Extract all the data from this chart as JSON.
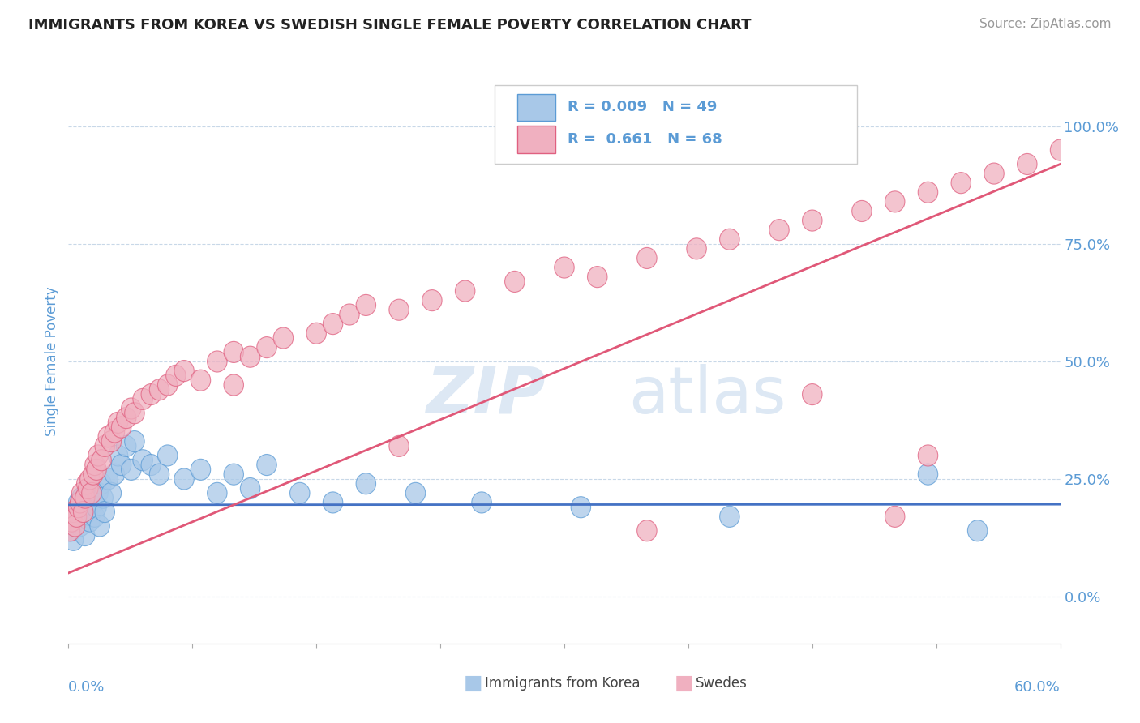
{
  "title": "IMMIGRANTS FROM KOREA VS SWEDISH SINGLE FEMALE POVERTY CORRELATION CHART",
  "source": "Source: ZipAtlas.com",
  "ylabel_label": "Single Female Poverty",
  "yticks": [
    0.0,
    0.25,
    0.5,
    0.75,
    1.0
  ],
  "ytick_labels": [
    "0.0%",
    "25.0%",
    "50.0%",
    "75.0%",
    "100.0%"
  ],
  "xlim": [
    0.0,
    0.6
  ],
  "ylim": [
    -0.1,
    1.1
  ],
  "blue_scatter_color": "#a8c8e8",
  "pink_scatter_color": "#f0b0c0",
  "blue_edge_color": "#5b9bd5",
  "pink_edge_color": "#e06080",
  "blue_line_color": "#4472c4",
  "pink_line_color": "#e05878",
  "grid_color": "#c8d8e8",
  "title_color": "#222222",
  "axis_label_color": "#5b9bd5",
  "background_color": "#ffffff",
  "watermark_color": "#dde8f4",
  "blue_line_y0": 0.195,
  "blue_line_slope": 0.002,
  "pink_line_y0": 0.05,
  "pink_line_slope": 1.45,
  "blue_x": [
    0.001,
    0.002,
    0.003,
    0.004,
    0.005,
    0.006,
    0.007,
    0.008,
    0.009,
    0.01,
    0.011,
    0.012,
    0.013,
    0.014,
    0.015,
    0.016,
    0.017,
    0.018,
    0.019,
    0.02,
    0.021,
    0.022,
    0.024,
    0.026,
    0.028,
    0.03,
    0.032,
    0.035,
    0.038,
    0.04,
    0.045,
    0.05,
    0.055,
    0.06,
    0.07,
    0.08,
    0.09,
    0.1,
    0.11,
    0.12,
    0.14,
    0.16,
    0.18,
    0.21,
    0.25,
    0.31,
    0.4,
    0.52,
    0.55
  ],
  "blue_y": [
    0.17,
    0.14,
    0.12,
    0.16,
    0.18,
    0.2,
    0.15,
    0.21,
    0.19,
    0.13,
    0.22,
    0.18,
    0.16,
    0.23,
    0.2,
    0.17,
    0.19,
    0.22,
    0.15,
    0.24,
    0.21,
    0.18,
    0.25,
    0.22,
    0.26,
    0.3,
    0.28,
    0.32,
    0.27,
    0.33,
    0.29,
    0.28,
    0.26,
    0.3,
    0.25,
    0.27,
    0.22,
    0.26,
    0.23,
    0.28,
    0.22,
    0.2,
    0.24,
    0.22,
    0.2,
    0.19,
    0.17,
    0.26,
    0.14
  ],
  "pink_x": [
    0.001,
    0.002,
    0.003,
    0.004,
    0.005,
    0.006,
    0.007,
    0.008,
    0.009,
    0.01,
    0.011,
    0.012,
    0.013,
    0.014,
    0.015,
    0.016,
    0.017,
    0.018,
    0.02,
    0.022,
    0.024,
    0.026,
    0.028,
    0.03,
    0.032,
    0.035,
    0.038,
    0.04,
    0.045,
    0.05,
    0.055,
    0.06,
    0.065,
    0.07,
    0.08,
    0.09,
    0.1,
    0.11,
    0.12,
    0.13,
    0.15,
    0.16,
    0.17,
    0.18,
    0.2,
    0.22,
    0.24,
    0.27,
    0.3,
    0.32,
    0.35,
    0.38,
    0.4,
    0.43,
    0.45,
    0.48,
    0.5,
    0.52,
    0.54,
    0.56,
    0.58,
    0.6,
    0.45,
    0.52,
    0.1,
    0.2,
    0.35,
    0.5
  ],
  "pink_y": [
    0.14,
    0.16,
    0.18,
    0.15,
    0.17,
    0.19,
    0.2,
    0.22,
    0.18,
    0.21,
    0.24,
    0.23,
    0.25,
    0.22,
    0.26,
    0.28,
    0.27,
    0.3,
    0.29,
    0.32,
    0.34,
    0.33,
    0.35,
    0.37,
    0.36,
    0.38,
    0.4,
    0.39,
    0.42,
    0.43,
    0.44,
    0.45,
    0.47,
    0.48,
    0.46,
    0.5,
    0.52,
    0.51,
    0.53,
    0.55,
    0.56,
    0.58,
    0.6,
    0.62,
    0.61,
    0.63,
    0.65,
    0.67,
    0.7,
    0.68,
    0.72,
    0.74,
    0.76,
    0.78,
    0.8,
    0.82,
    0.84,
    0.86,
    0.88,
    0.9,
    0.92,
    0.95,
    0.43,
    0.3,
    0.45,
    0.32,
    0.14,
    0.17
  ]
}
